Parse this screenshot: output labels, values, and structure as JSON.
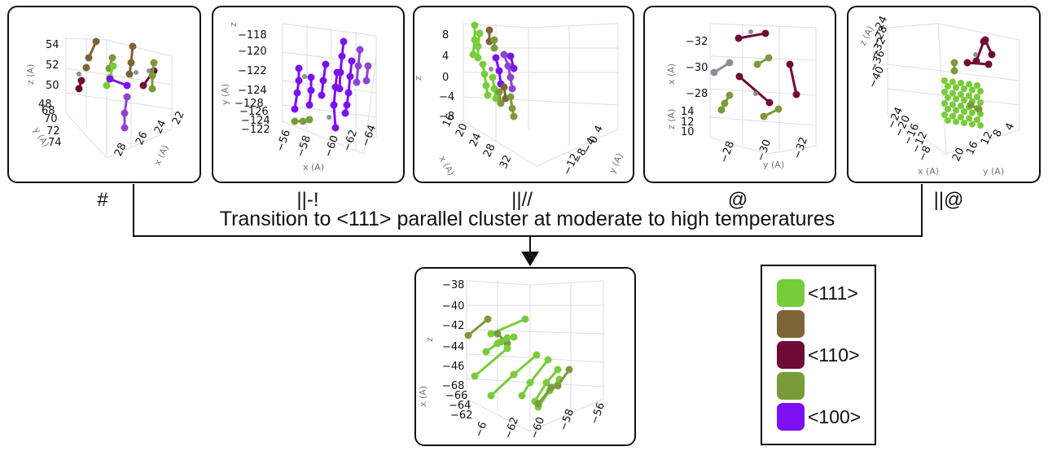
{
  "colors": {
    "c111": "#77cc3a",
    "brown": "#7e6339",
    "c110": "#6e0a36",
    "olive": "#7b9a3a",
    "c100": "#7b10f2",
    "purple_light": "#8e44d0",
    "grey": "#8a8f99"
  },
  "panels": [
    {
      "label": "#",
      "ticks": [
        {
          "text": "54"
        },
        {
          "text": "52"
        },
        {
          "text": "50"
        },
        {
          "text": "48"
        },
        {
          "text": "68"
        },
        {
          "text": "70"
        },
        {
          "text": "72"
        },
        {
          "text": "74"
        },
        {
          "text": "28"
        },
        {
          "text": "26"
        },
        {
          "text": "24"
        },
        {
          "text": "22"
        }
      ],
      "axes": {
        "z": "z (A)",
        "y": "y (A)",
        "x": "x (A)"
      }
    },
    {
      "label": "||-!",
      "ticks": [
        {
          "text": "−118"
        },
        {
          "text": "−120"
        },
        {
          "text": "−122"
        },
        {
          "text": "−124"
        },
        {
          "text": "−128"
        },
        {
          "text": "−126"
        },
        {
          "text": "−124"
        },
        {
          "text": "−122"
        },
        {
          "text": "−56"
        },
        {
          "text": "−58"
        },
        {
          "text": "−60"
        },
        {
          "text": "−62"
        },
        {
          "text": "−64"
        }
      ],
      "axes": {
        "z": "z",
        "y": "y (A)",
        "x": "x (A)"
      }
    },
    {
      "label": "||//",
      "ticks": [
        {
          "text": "8"
        },
        {
          "text": "4"
        },
        {
          "text": "0"
        },
        {
          "text": "−4"
        },
        {
          "text": "−8"
        },
        {
          "text": "16"
        },
        {
          "text": "20"
        },
        {
          "text": "24"
        },
        {
          "text": "28"
        },
        {
          "text": "32"
        },
        {
          "text": "4"
        },
        {
          "text": "0"
        },
        {
          "text": "−4"
        },
        {
          "text": "−8"
        },
        {
          "text": "−12"
        }
      ],
      "axes": {
        "z": "z",
        "x": "x (A)",
        "y": "y (A)"
      }
    },
    {
      "label": "@",
      "ticks": [
        {
          "text": "−32"
        },
        {
          "text": "−30"
        },
        {
          "text": "−28"
        },
        {
          "text": "14"
        },
        {
          "text": "12"
        },
        {
          "text": "10"
        },
        {
          "text": "−28"
        },
        {
          "text": "−30"
        },
        {
          "text": "−32"
        }
      ],
      "axes": {
        "x": "x (A)",
        "z": "z (A)",
        "y": "y (A)"
      }
    },
    {
      "label": "||@",
      "ticks": [
        {
          "text": "−24"
        },
        {
          "text": "−28"
        },
        {
          "text": "−32"
        },
        {
          "text": "−36"
        },
        {
          "text": "−40"
        },
        {
          "text": "−24"
        },
        {
          "text": "−20"
        },
        {
          "text": "−16"
        },
        {
          "text": "−12"
        },
        {
          "text": "−8"
        },
        {
          "text": "20"
        },
        {
          "text": "16"
        },
        {
          "text": "12"
        },
        {
          "text": "8"
        },
        {
          "text": "4"
        }
      ],
      "axes": {
        "z": "z (A)",
        "x": "x (A)",
        "y": "y (A)"
      }
    }
  ],
  "result_panel": {
    "ticks": [
      {
        "text": "−38"
      },
      {
        "text": "−40"
      },
      {
        "text": "−42"
      },
      {
        "text": "−44"
      },
      {
        "text": "−46"
      },
      {
        "text": "−68"
      },
      {
        "text": "−66"
      },
      {
        "text": "−64"
      },
      {
        "text": "−62"
      },
      {
        "text": "−6"
      },
      {
        "text": "−62"
      },
      {
        "text": "−60"
      },
      {
        "text": "−58"
      },
      {
        "text": "−56"
      }
    ],
    "axes": {
      "z": "z",
      "x": "x (A)"
    }
  },
  "caption": "Transition to <111> parallel cluster at moderate to high temperatures",
  "legend": [
    {
      "label": "<111>",
      "color": "#77cc3a"
    },
    {
      "label": "",
      "color": "#7e6339"
    },
    {
      "label": "<110>",
      "color": "#6e0a36"
    },
    {
      "label": "",
      "color": "#7b9a3a"
    },
    {
      "label": "<100>",
      "color": "#7b10f2"
    }
  ]
}
